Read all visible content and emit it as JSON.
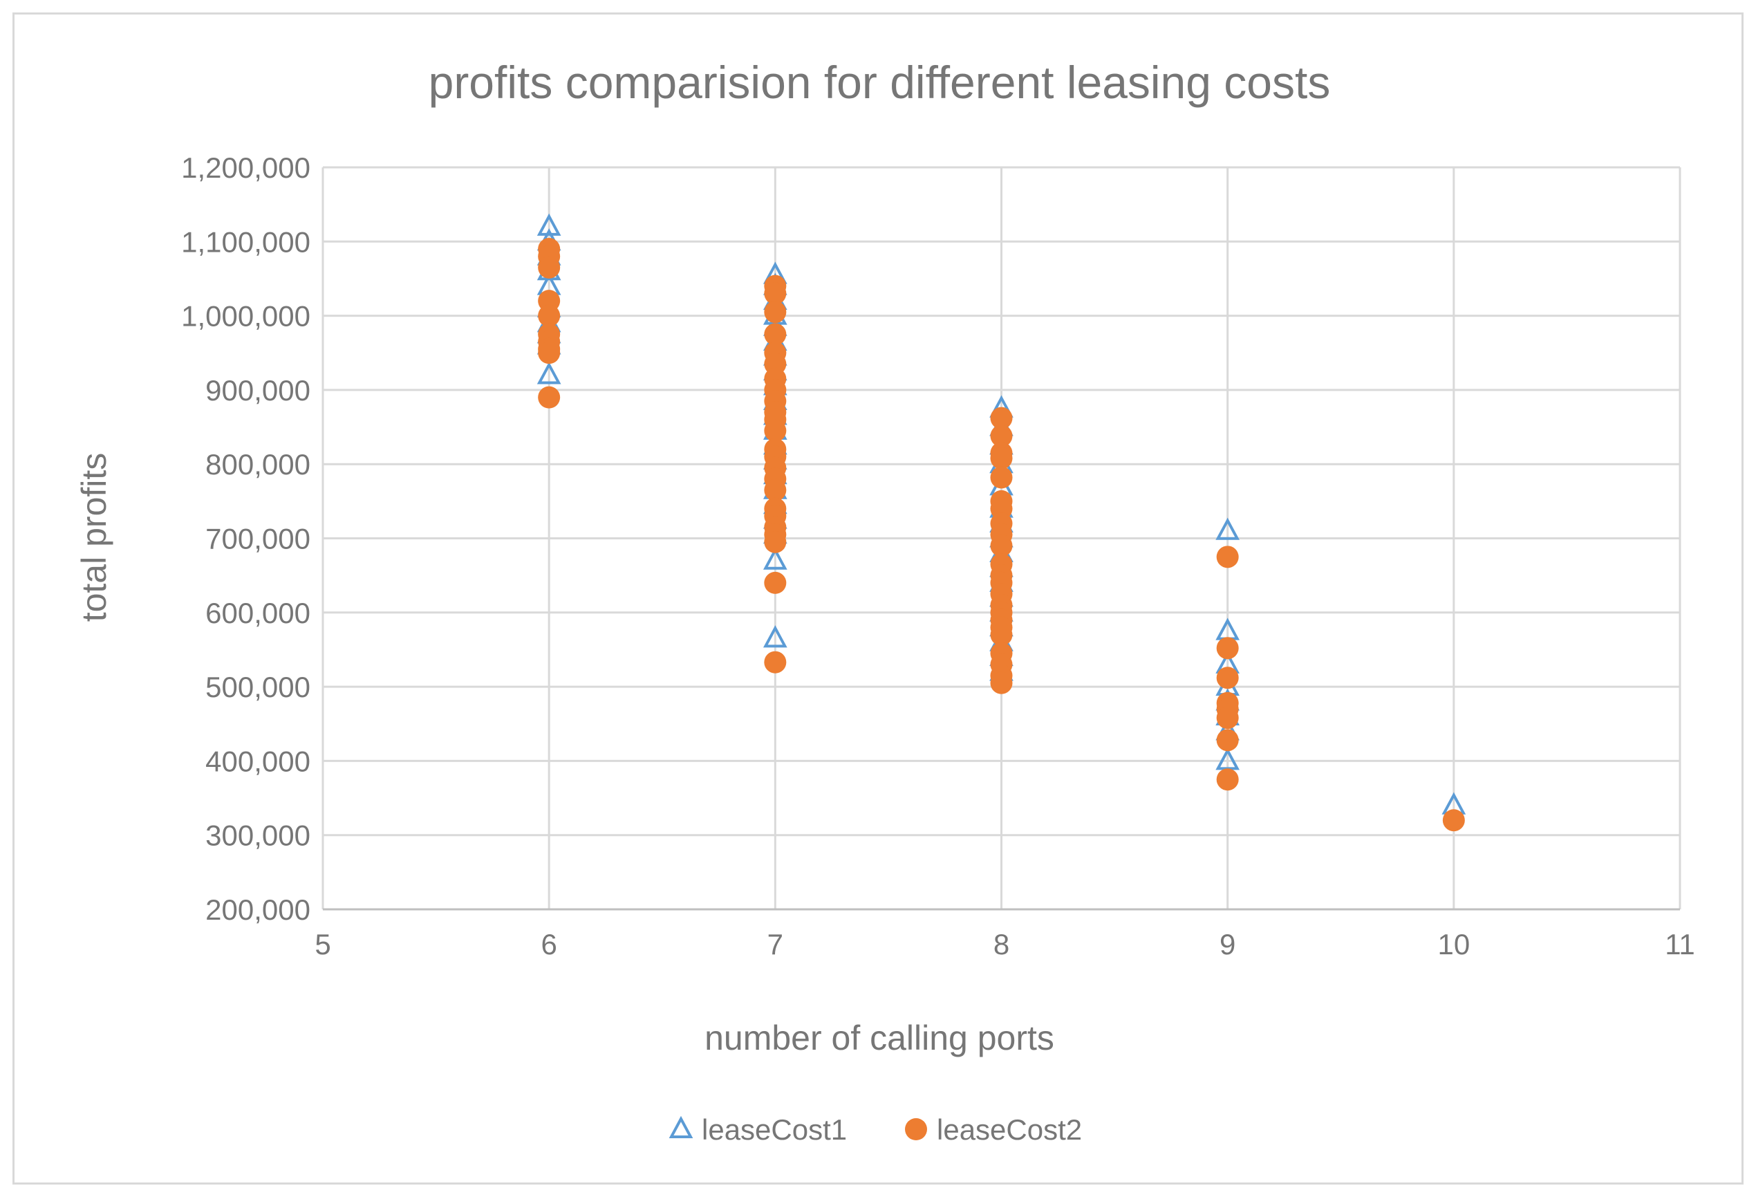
{
  "chart_data": {
    "type": "scatter",
    "title": "profits comparision for different leasing costs",
    "xlabel": "number of calling ports",
    "ylabel": "total profits",
    "xlim": [
      5,
      11
    ],
    "ylim": [
      200000,
      1200000
    ],
    "x_ticks": [
      "5",
      "6",
      "7",
      "8",
      "9",
      "10",
      "11"
    ],
    "y_ticks": [
      "200,000",
      "300,000",
      "400,000",
      "500,000",
      "600,000",
      "700,000",
      "800,000",
      "900,000",
      "1,000,000",
      "1,100,000",
      "1,200,000"
    ],
    "grid": true,
    "legend_position": "bottom",
    "series": [
      {
        "name": "leaseCost1",
        "marker": "triangle-open",
        "color": "#5b9bd5",
        "points": [
          [
            6,
            1120000
          ],
          [
            6,
            1100000
          ],
          [
            6,
            1080000
          ],
          [
            6,
            1060000
          ],
          [
            6,
            1040000
          ],
          [
            6,
            1010000
          ],
          [
            6,
            990000
          ],
          [
            6,
            975000
          ],
          [
            6,
            960000
          ],
          [
            6,
            920000
          ],
          [
            7,
            1055000
          ],
          [
            7,
            1040000
          ],
          [
            7,
            1020000
          ],
          [
            7,
            1000000
          ],
          [
            7,
            985000
          ],
          [
            7,
            965000
          ],
          [
            7,
            945000
          ],
          [
            7,
            925000
          ],
          [
            7,
            905000
          ],
          [
            7,
            885000
          ],
          [
            7,
            865000
          ],
          [
            7,
            845000
          ],
          [
            7,
            825000
          ],
          [
            7,
            805000
          ],
          [
            7,
            785000
          ],
          [
            7,
            765000
          ],
          [
            7,
            745000
          ],
          [
            7,
            725000
          ],
          [
            7,
            705000
          ],
          [
            7,
            670000
          ],
          [
            7,
            565000
          ],
          [
            8,
            875000
          ],
          [
            8,
            850000
          ],
          [
            8,
            825000
          ],
          [
            8,
            800000
          ],
          [
            8,
            770000
          ],
          [
            8,
            740000
          ],
          [
            8,
            720000
          ],
          [
            8,
            700000
          ],
          [
            8,
            680000
          ],
          [
            8,
            660000
          ],
          [
            8,
            640000
          ],
          [
            8,
            620000
          ],
          [
            8,
            600000
          ],
          [
            8,
            580000
          ],
          [
            8,
            560000
          ],
          [
            8,
            540000
          ],
          [
            8,
            520000
          ],
          [
            9,
            710000
          ],
          [
            9,
            575000
          ],
          [
            9,
            530000
          ],
          [
            9,
            500000
          ],
          [
            9,
            480000
          ],
          [
            9,
            460000
          ],
          [
            9,
            440000
          ],
          [
            9,
            400000
          ],
          [
            10,
            340000
          ]
        ]
      },
      {
        "name": "leaseCost2",
        "marker": "circle-filled",
        "color": "#ed7d31",
        "points": [
          [
            6,
            1090000
          ],
          [
            6,
            1080000
          ],
          [
            6,
            1065000
          ],
          [
            6,
            1020000
          ],
          [
            6,
            1000000
          ],
          [
            6,
            975000
          ],
          [
            6,
            965000
          ],
          [
            6,
            955000
          ],
          [
            6,
            950000
          ],
          [
            6,
            890000
          ],
          [
            7,
            1040000
          ],
          [
            7,
            1030000
          ],
          [
            7,
            1005000
          ],
          [
            7,
            975000
          ],
          [
            7,
            950000
          ],
          [
            7,
            935000
          ],
          [
            7,
            915000
          ],
          [
            7,
            900000
          ],
          [
            7,
            885000
          ],
          [
            7,
            870000
          ],
          [
            7,
            860000
          ],
          [
            7,
            845000
          ],
          [
            7,
            820000
          ],
          [
            7,
            810000
          ],
          [
            7,
            795000
          ],
          [
            7,
            780000
          ],
          [
            7,
            765000
          ],
          [
            7,
            740000
          ],
          [
            7,
            730000
          ],
          [
            7,
            715000
          ],
          [
            7,
            705000
          ],
          [
            7,
            695000
          ],
          [
            7,
            640000
          ],
          [
            7,
            533000
          ],
          [
            8,
            862000
          ],
          [
            8,
            838000
          ],
          [
            8,
            815000
          ],
          [
            8,
            808000
          ],
          [
            8,
            782000
          ],
          [
            8,
            750000
          ],
          [
            8,
            740000
          ],
          [
            8,
            720000
          ],
          [
            8,
            705000
          ],
          [
            8,
            690000
          ],
          [
            8,
            665000
          ],
          [
            8,
            650000
          ],
          [
            8,
            640000
          ],
          [
            8,
            625000
          ],
          [
            8,
            610000
          ],
          [
            8,
            600000
          ],
          [
            8,
            590000
          ],
          [
            8,
            580000
          ],
          [
            8,
            570000
          ],
          [
            8,
            545000
          ],
          [
            8,
            530000
          ],
          [
            8,
            515000
          ],
          [
            8,
            505000
          ],
          [
            9,
            675000
          ],
          [
            9,
            552000
          ],
          [
            9,
            512000
          ],
          [
            9,
            478000
          ],
          [
            9,
            470000
          ],
          [
            9,
            458000
          ],
          [
            9,
            428000
          ],
          [
            9,
            375000
          ],
          [
            10,
            320000
          ]
        ]
      }
    ]
  }
}
